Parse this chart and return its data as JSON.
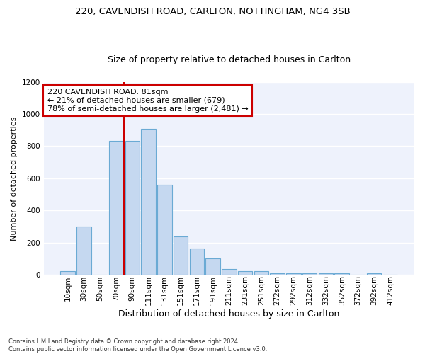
{
  "title1": "220, CAVENDISH ROAD, CARLTON, NOTTINGHAM, NG4 3SB",
  "title2": "Size of property relative to detached houses in Carlton",
  "xlabel": "Distribution of detached houses by size in Carlton",
  "ylabel": "Number of detached properties",
  "categories": [
    "10sqm",
    "30sqm",
    "50sqm",
    "70sqm",
    "90sqm",
    "111sqm",
    "131sqm",
    "151sqm",
    "171sqm",
    "191sqm",
    "211sqm",
    "231sqm",
    "251sqm",
    "272sqm",
    "292sqm",
    "312sqm",
    "332sqm",
    "352sqm",
    "372sqm",
    "392sqm",
    "412sqm"
  ],
  "values": [
    20,
    300,
    0,
    835,
    835,
    910,
    560,
    240,
    165,
    100,
    35,
    20,
    20,
    10,
    10,
    10,
    10,
    10,
    0,
    10,
    0
  ],
  "bar_color": "#c5d8f0",
  "bar_edge_color": "#6aaad4",
  "vline_color": "#cc0000",
  "annotation_text": "220 CAVENDISH ROAD: 81sqm\n← 21% of detached houses are smaller (679)\n78% of semi-detached houses are larger (2,481) →",
  "annotation_box_color": "#ffffff",
  "annotation_box_edge": "#cc0000",
  "ylim": [
    0,
    1200
  ],
  "yticks": [
    0,
    200,
    400,
    600,
    800,
    1000,
    1200
  ],
  "footnote": "Contains HM Land Registry data © Crown copyright and database right 2024.\nContains public sector information licensed under the Open Government Licence v3.0.",
  "bg_color": "#eef2fc",
  "grid_color": "#ffffff",
  "title1_fontsize": 9.5,
  "title2_fontsize": 9,
  "xlabel_fontsize": 9,
  "ylabel_fontsize": 8,
  "tick_fontsize": 7.5,
  "footnote_fontsize": 6
}
